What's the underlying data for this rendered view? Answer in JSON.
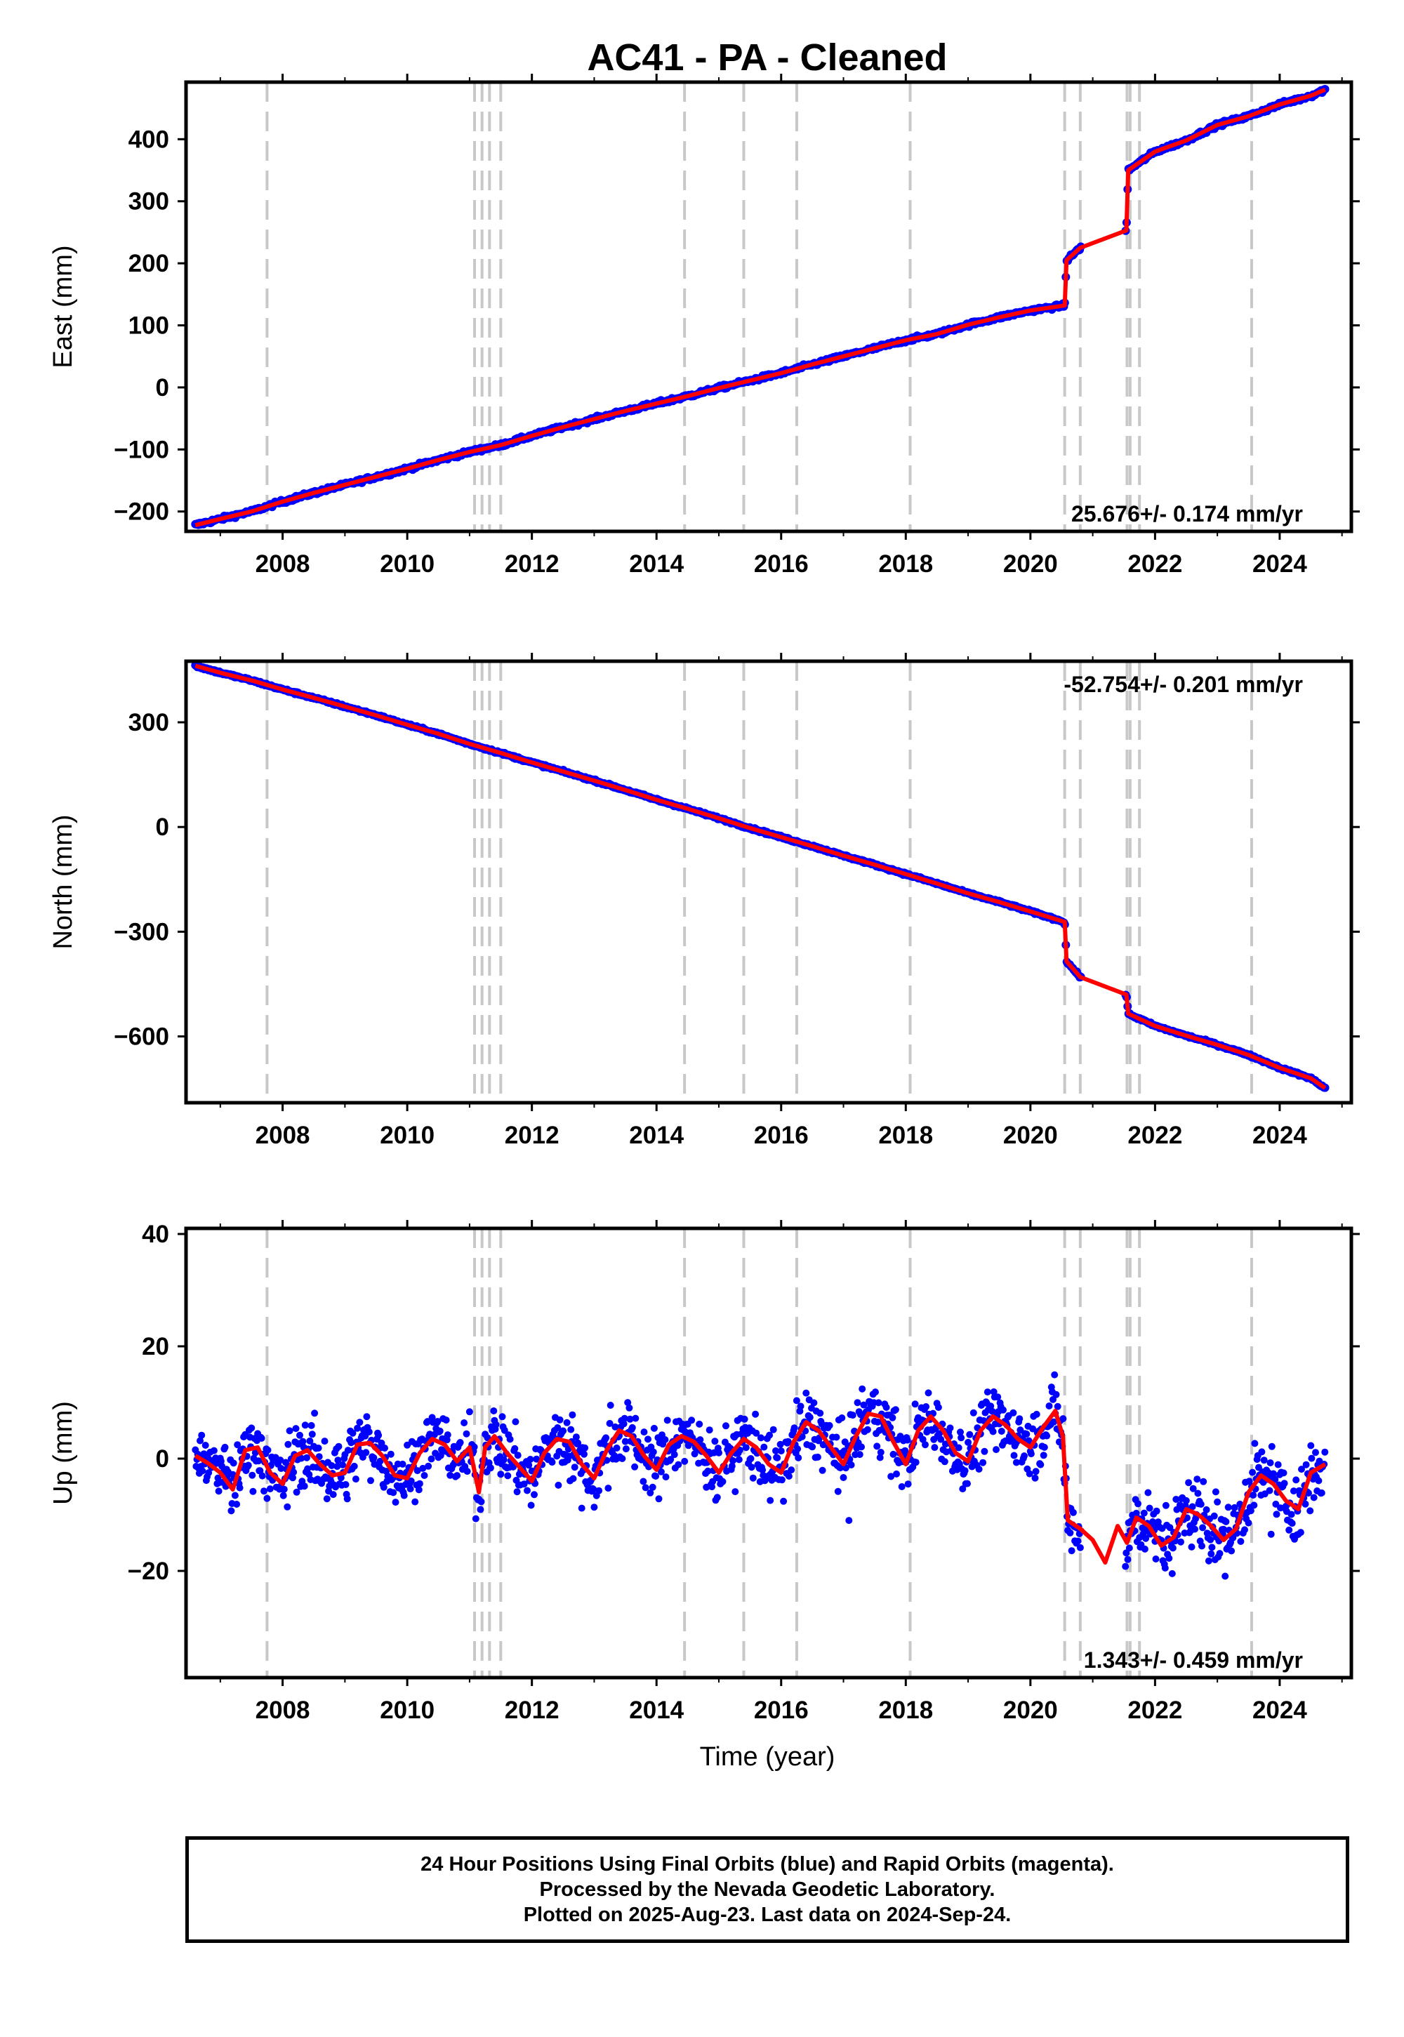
{
  "title": "AC41  - PA - Cleaned",
  "colors": {
    "final_points": "#0000ff",
    "model_line": "#ff0000",
    "event_lines": "#c8c8c8",
    "axes": "#000000"
  },
  "xaxis": {
    "label": "Time (year)",
    "range": [
      2006.45,
      2025.15
    ],
    "ticks": [
      "2008",
      "2010",
      "2012",
      "2014",
      "2016",
      "2018",
      "2020",
      "2022",
      "2024"
    ]
  },
  "event_lines": [
    2007.75,
    2011.08,
    2011.2,
    2011.32,
    2011.5,
    2014.45,
    2015.4,
    2016.25,
    2018.07,
    2020.55,
    2020.8,
    2021.55,
    2021.6,
    2021.75,
    2023.55
  ],
  "footer": {
    "line1": "24 Hour Positions Using Final Orbits (blue) and Rapid Orbits (magenta).",
    "line2": "Processed by the Nevada Geodetic Laboratory.",
    "line3": "Plotted on 2025-Aug-23. Last data on 2024-Sep-24."
  },
  "chart_data": [
    {
      "type": "scatter",
      "ylabel": "East (mm)",
      "ylim": [
        -232,
        492
      ],
      "yticks": [
        "−200",
        "−100",
        "0",
        "100",
        "200",
        "300",
        "400"
      ],
      "rate_label": "25.676+/- 0.174 mm/yr",
      "rate_position": "bottom-right",
      "series": [
        {
          "x": [
            2006.6,
            2007.0,
            2007.5,
            2008.0,
            2008.5,
            2009.0,
            2009.5,
            2010.0,
            2010.5,
            2011.0,
            2011.5,
            2012.0,
            2012.5,
            2013.0,
            2013.5,
            2014.0,
            2014.5,
            2015.0,
            2015.5,
            2016.0,
            2016.5,
            2017.0,
            2017.5,
            2018.0,
            2018.5,
            2019.0,
            2019.5,
            2020.0,
            2020.55,
            2020.58,
            2020.8,
            2021.54,
            2021.57,
            2022.0,
            2022.5,
            2023.0,
            2023.5,
            2024.0,
            2024.5,
            2024.73
          ],
          "y": [
            -222,
            -212,
            -200,
            -184,
            -170,
            -157,
            -144,
            -131,
            -117,
            -104,
            -93,
            -78,
            -64,
            -51,
            -38,
            -26,
            -14,
            -1,
            11,
            23,
            37,
            50,
            63,
            76,
            86,
            101,
            113,
            124,
            132,
            205,
            225,
            253,
            350,
            380,
            398,
            423,
            437,
            456,
            470,
            480
          ]
        }
      ]
    },
    {
      "type": "scatter",
      "ylabel": "North (mm)",
      "ylim": [
        -790,
        475
      ],
      "yticks": [
        "−600",
        "−300",
        "0",
        "300"
      ],
      "rate_label": "-52.754+/- 0.201 mm/yr",
      "rate_position": "top-right",
      "series": [
        {
          "x": [
            2006.6,
            2007.0,
            2007.5,
            2008.0,
            2008.5,
            2009.0,
            2009.5,
            2010.0,
            2010.5,
            2011.0,
            2011.5,
            2012.0,
            2012.5,
            2013.0,
            2013.5,
            2014.0,
            2014.5,
            2015.0,
            2015.5,
            2016.0,
            2016.5,
            2017.0,
            2017.5,
            2018.0,
            2018.5,
            2019.0,
            2019.5,
            2020.0,
            2020.55,
            2020.58,
            2020.8,
            2021.54,
            2021.57,
            2022.0,
            2022.5,
            2023.0,
            2023.5,
            2024.0,
            2024.5,
            2024.73
          ],
          "y": [
            462,
            442,
            420,
            394,
            370,
            345,
            320,
            293,
            267,
            238,
            212,
            185,
            159,
            133,
            106,
            78,
            52,
            25,
            -3,
            -29,
            -55,
            -82,
            -108,
            -135,
            -162,
            -190,
            -215,
            -242,
            -272,
            -385,
            -430,
            -480,
            -535,
            -570,
            -598,
            -624,
            -653,
            -690,
            -720,
            -748
          ]
        }
      ]
    },
    {
      "type": "scatter",
      "ylabel": "Up (mm)",
      "ylim": [
        -39,
        41
      ],
      "yticks": [
        "−20",
        "0",
        "20",
        "40"
      ],
      "rate_label": "1.343+/- 0.459 mm/yr",
      "rate_position": "bottom-right",
      "series": [
        {
          "x": [
            2006.6,
            2006.8,
            2007.0,
            2007.2,
            2007.4,
            2007.6,
            2007.8,
            2008.0,
            2008.2,
            2008.4,
            2008.6,
            2008.8,
            2009.0,
            2009.2,
            2009.4,
            2009.6,
            2009.8,
            2010.0,
            2010.2,
            2010.4,
            2010.6,
            2010.8,
            2011.0,
            2011.15,
            2011.25,
            2011.4,
            2011.6,
            2011.8,
            2012.0,
            2012.2,
            2012.4,
            2012.6,
            2012.8,
            2013.0,
            2013.2,
            2013.4,
            2013.6,
            2013.8,
            2014.0,
            2014.2,
            2014.4,
            2014.6,
            2014.8,
            2015.0,
            2015.2,
            2015.4,
            2015.6,
            2015.8,
            2016.0,
            2016.2,
            2016.4,
            2016.6,
            2016.8,
            2017.0,
            2017.2,
            2017.4,
            2017.6,
            2017.8,
            2018.0,
            2018.2,
            2018.4,
            2018.6,
            2018.8,
            2019.0,
            2019.2,
            2019.4,
            2019.6,
            2019.8,
            2020.0,
            2020.2,
            2020.4,
            2020.52,
            2020.6,
            2020.8,
            2021.0,
            2021.2,
            2021.4,
            2021.55,
            2021.7,
            2021.9,
            2022.1,
            2022.3,
            2022.5,
            2022.7,
            2022.9,
            2023.1,
            2023.3,
            2023.5,
            2023.7,
            2023.9,
            2024.1,
            2024.3,
            2024.5,
            2024.73
          ],
          "y": [
            0.5,
            -0.8,
            -2.5,
            -5.5,
            1.5,
            2.0,
            -2.5,
            -4.5,
            0.5,
            1.5,
            -1.0,
            -3.0,
            -2.5,
            2.5,
            2.8,
            0.5,
            -3.0,
            -3.5,
            1.0,
            3.5,
            2.5,
            -0.5,
            2.0,
            -6.0,
            2.0,
            4.0,
            1.0,
            -1.5,
            -4.0,
            1.0,
            3.5,
            3.0,
            -1.0,
            -3.5,
            1.5,
            5.0,
            4.0,
            0.5,
            -2.0,
            2.5,
            4.0,
            3.0,
            0.5,
            -2.5,
            1.0,
            3.5,
            2.0,
            -1.0,
            -2.5,
            3.0,
            6.5,
            5.0,
            2.0,
            -1.0,
            4.0,
            8.0,
            7.5,
            3.0,
            -1.0,
            5.0,
            7.5,
            5.0,
            1.0,
            -0.5,
            5.0,
            7.5,
            6.0,
            3.5,
            2.0,
            5.5,
            8.5,
            4.0,
            -11.0,
            -12.5,
            -14.5,
            -18.5,
            -12.0,
            -15.0,
            -10.5,
            -12.0,
            -15.5,
            -14.0,
            -9.0,
            -10.0,
            -12.0,
            -14.5,
            -12.5,
            -6.0,
            -3.0,
            -4.5,
            -7.5,
            -9.0,
            -2.5,
            -1.0
          ]
        }
      ]
    }
  ]
}
